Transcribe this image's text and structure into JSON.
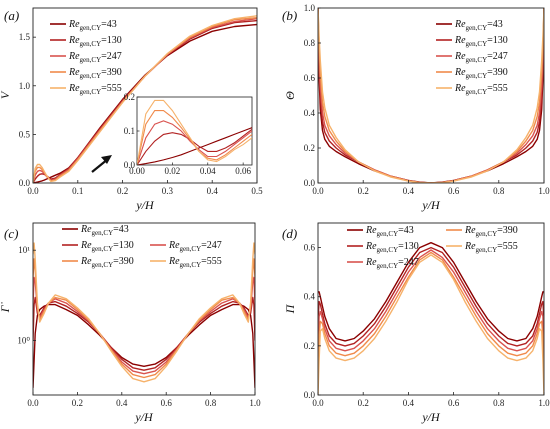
{
  "chart_data": [
    {
      "id": "a",
      "type": "line",
      "panel_label": "(a)",
      "xlabel": "y/H",
      "ylabel": "V",
      "xlim": [
        0,
        0.5
      ],
      "ylim": [
        0,
        1.8
      ],
      "xticks": [
        "0.0",
        "0.1",
        "0.2",
        "0.3",
        "0.4",
        "0.5"
      ],
      "yticks": [
        "0.0",
        "0.5",
        "1.0",
        "1.5"
      ],
      "xtick_values": [
        0,
        0.1,
        0.2,
        0.3,
        0.4,
        0.5
      ],
      "ytick_values": [
        0,
        0.5,
        1.0,
        1.5
      ],
      "legend_position": "top-left",
      "x": [
        0,
        0.005,
        0.01,
        0.015,
        0.02,
        0.025,
        0.03,
        0.04,
        0.05,
        0.06,
        0.08,
        0.1,
        0.15,
        0.2,
        0.25,
        0.3,
        0.35,
        0.4,
        0.45,
        0.5
      ],
      "series": [
        {
          "name": "43",
          "color": "#8b0000",
          "values": [
            0,
            0.004,
            0.009,
            0.015,
            0.022,
            0.03,
            0.04,
            0.06,
            0.08,
            0.1,
            0.155,
            0.26,
            0.57,
            0.86,
            1.11,
            1.31,
            1.46,
            1.56,
            1.61,
            1.63
          ]
        },
        {
          "name": "130",
          "color": "#b22222",
          "values": [
            0,
            0.04,
            0.07,
            0.09,
            0.095,
            0.09,
            0.075,
            0.04,
            0.05,
            0.085,
            0.15,
            0.26,
            0.56,
            0.85,
            1.1,
            1.32,
            1.48,
            1.59,
            1.65,
            1.67
          ]
        },
        {
          "name": "247",
          "color": "#d9534f",
          "values": [
            0,
            0.08,
            0.12,
            0.13,
            0.12,
            0.1,
            0.07,
            0.025,
            0.04,
            0.08,
            0.14,
            0.25,
            0.55,
            0.84,
            1.1,
            1.32,
            1.49,
            1.6,
            1.66,
            1.69
          ]
        },
        {
          "name": "390",
          "color": "#f08a4b",
          "values": [
            0,
            0.12,
            0.16,
            0.16,
            0.14,
            0.11,
            0.075,
            0.02,
            0.03,
            0.07,
            0.13,
            0.24,
            0.54,
            0.83,
            1.1,
            1.33,
            1.5,
            1.61,
            1.68,
            1.7
          ]
        },
        {
          "name": "555",
          "color": "#f6b26b",
          "values": [
            0,
            0.15,
            0.19,
            0.19,
            0.16,
            0.12,
            0.08,
            0.015,
            0.025,
            0.06,
            0.12,
            0.23,
            0.53,
            0.83,
            1.1,
            1.33,
            1.51,
            1.62,
            1.69,
            1.72
          ]
        }
      ],
      "inset": {
        "xlim": [
          0,
          0.065
        ],
        "ylim": [
          0,
          0.2
        ],
        "xticks": [
          "0.00",
          "0.02",
          "0.04",
          "0.06"
        ],
        "yticks": [
          "0.0",
          "0.1",
          "0.2"
        ],
        "xtick_values": [
          0,
          0.02,
          0.04,
          0.06
        ],
        "ytick_values": [
          0,
          0.1,
          0.2
        ],
        "x": [
          0,
          0.005,
          0.01,
          0.015,
          0.02,
          0.025,
          0.03,
          0.035,
          0.04,
          0.045,
          0.05,
          0.055,
          0.06,
          0.065
        ],
        "series": [
          {
            "name": "43",
            "values": [
              0,
              0.004,
              0.009,
              0.015,
              0.022,
              0.03,
              0.04,
              0.05,
              0.06,
              0.07,
              0.08,
              0.09,
              0.1,
              0.11
            ]
          },
          {
            "name": "130",
            "values": [
              0,
              0.04,
              0.07,
              0.09,
              0.095,
              0.09,
              0.075,
              0.055,
              0.04,
              0.04,
              0.05,
              0.065,
              0.085,
              0.105
            ]
          },
          {
            "name": "247",
            "values": [
              0,
              0.08,
              0.12,
              0.13,
              0.12,
              0.1,
              0.07,
              0.045,
              0.025,
              0.025,
              0.04,
              0.06,
              0.08,
              0.1
            ]
          },
          {
            "name": "390",
            "values": [
              0,
              0.12,
              0.16,
              0.16,
              0.14,
              0.11,
              0.075,
              0.04,
              0.02,
              0.015,
              0.03,
              0.05,
              0.07,
              0.09
            ]
          },
          {
            "name": "555",
            "values": [
              0,
              0.15,
              0.19,
              0.19,
              0.16,
              0.12,
              0.08,
              0.04,
              0.015,
              0.01,
              0.025,
              0.045,
              0.06,
              0.08
            ]
          }
        ]
      }
    },
    {
      "id": "b",
      "type": "line",
      "panel_label": "(b)",
      "xlabel": "y/H",
      "ylabel": "Θ",
      "xlim": [
        0,
        1
      ],
      "ylim": [
        0,
        1
      ],
      "xticks": [
        "0.0",
        "0.2",
        "0.4",
        "0.6",
        "0.8",
        "1.0"
      ],
      "yticks": [
        "0.0",
        "0.2",
        "0.4",
        "0.6",
        "0.8",
        "1.0"
      ],
      "xtick_values": [
        0,
        0.2,
        0.4,
        0.6,
        0.8,
        1.0
      ],
      "ytick_values": [
        0,
        0.2,
        0.4,
        0.6,
        0.8,
        1.0
      ],
      "legend_position": "top-right",
      "x": [
        0,
        0.005,
        0.01,
        0.02,
        0.03,
        0.05,
        0.08,
        0.12,
        0.18,
        0.25,
        0.32,
        0.4,
        0.45,
        0.5,
        0.55,
        0.6,
        0.68,
        0.75,
        0.82,
        0.88,
        0.92,
        0.95,
        0.97,
        0.98,
        0.99,
        0.995,
        1.0
      ],
      "series": [
        {
          "name": "43",
          "color": "#8b0000",
          "values": [
            1.0,
            0.6,
            0.42,
            0.3,
            0.25,
            0.21,
            0.18,
            0.15,
            0.11,
            0.07,
            0.04,
            0.015,
            0.005,
            0.0,
            0.005,
            0.015,
            0.04,
            0.07,
            0.11,
            0.15,
            0.18,
            0.21,
            0.25,
            0.3,
            0.42,
            0.6,
            1.0
          ]
        },
        {
          "name": "130",
          "color": "#b22222",
          "values": [
            1.0,
            0.66,
            0.48,
            0.35,
            0.29,
            0.24,
            0.2,
            0.16,
            0.12,
            0.075,
            0.04,
            0.014,
            0.004,
            0.0,
            0.004,
            0.014,
            0.04,
            0.075,
            0.12,
            0.16,
            0.2,
            0.24,
            0.29,
            0.35,
            0.48,
            0.66,
            1.0
          ]
        },
        {
          "name": "247",
          "color": "#d9534f",
          "values": [
            1.0,
            0.72,
            0.55,
            0.4,
            0.33,
            0.27,
            0.22,
            0.17,
            0.12,
            0.075,
            0.04,
            0.013,
            0.003,
            0.0,
            0.003,
            0.013,
            0.04,
            0.075,
            0.12,
            0.17,
            0.22,
            0.27,
            0.33,
            0.4,
            0.55,
            0.72,
            1.0
          ]
        },
        {
          "name": "390",
          "color": "#f08a4b",
          "values": [
            1.0,
            0.78,
            0.62,
            0.46,
            0.38,
            0.3,
            0.24,
            0.18,
            0.12,
            0.072,
            0.038,
            0.012,
            0.003,
            0.0,
            0.003,
            0.012,
            0.038,
            0.072,
            0.12,
            0.18,
            0.24,
            0.3,
            0.38,
            0.46,
            0.62,
            0.78,
            1.0
          ]
        },
        {
          "name": "555",
          "color": "#f6b26b",
          "values": [
            1.0,
            0.84,
            0.7,
            0.52,
            0.43,
            0.33,
            0.26,
            0.19,
            0.12,
            0.07,
            0.035,
            0.011,
            0.002,
            0.0,
            0.002,
            0.011,
            0.035,
            0.07,
            0.12,
            0.19,
            0.26,
            0.33,
            0.43,
            0.52,
            0.7,
            0.84,
            1.0
          ]
        }
      ]
    },
    {
      "id": "c",
      "type": "line",
      "panel_label": "(c)",
      "xlabel": "y/H",
      "ylabel": "Γ̇",
      "yscale": "log",
      "xlim": [
        0,
        1
      ],
      "ylim": [
        0.25,
        20
      ],
      "xticks": [
        "0.0",
        "0.2",
        "0.4",
        "0.6",
        "0.8",
        "1.0"
      ],
      "yticks": [
        "10⁰",
        "10¹"
      ],
      "xtick_values": [
        0,
        0.2,
        0.4,
        0.6,
        0.8,
        1.0
      ],
      "ytick_values": [
        1,
        10
      ],
      "legend_position": "top",
      "x": [
        0,
        0.005,
        0.01,
        0.02,
        0.03,
        0.05,
        0.07,
        0.1,
        0.15,
        0.2,
        0.25,
        0.3,
        0.35,
        0.4,
        0.45,
        0.5,
        0.55,
        0.6,
        0.65,
        0.7,
        0.75,
        0.8,
        0.85,
        0.9,
        0.93,
        0.95,
        0.97,
        0.98,
        0.99,
        0.995,
        1.0
      ],
      "series": [
        {
          "name": "43",
          "color": "#8b0000",
          "values": [
            0.3,
            0.6,
            1.2,
            1.9,
            2.2,
            2.4,
            2.5,
            2.5,
            2.2,
            1.9,
            1.5,
            1.15,
            0.85,
            0.65,
            0.55,
            0.52,
            0.55,
            0.65,
            0.85,
            1.15,
            1.5,
            1.9,
            2.2,
            2.5,
            2.5,
            2.4,
            2.2,
            1.9,
            1.2,
            0.6,
            0.3
          ]
        },
        {
          "name": "130",
          "color": "#b22222",
          "values": [
            1.0,
            2.5,
            3.0,
            2.0,
            1.9,
            2.3,
            2.6,
            2.7,
            2.4,
            2.0,
            1.6,
            1.2,
            0.85,
            0.62,
            0.5,
            0.47,
            0.5,
            0.62,
            0.85,
            1.2,
            1.6,
            2.0,
            2.4,
            2.7,
            2.6,
            2.3,
            1.9,
            2.0,
            3.0,
            2.5,
            1.0
          ]
        },
        {
          "name": "247",
          "color": "#d9534f",
          "values": [
            2.5,
            5.0,
            4.5,
            2.2,
            1.8,
            2.2,
            2.6,
            2.9,
            2.6,
            2.1,
            1.65,
            1.2,
            0.82,
            0.58,
            0.46,
            0.43,
            0.46,
            0.58,
            0.82,
            1.2,
            1.65,
            2.1,
            2.6,
            2.9,
            2.6,
            2.2,
            1.8,
            2.2,
            4.5,
            5.0,
            2.5
          ]
        },
        {
          "name": "390",
          "color": "#f08a4b",
          "values": [
            5.0,
            8.0,
            6.0,
            2.4,
            1.7,
            2.1,
            2.6,
            3.0,
            2.8,
            2.2,
            1.7,
            1.2,
            0.8,
            0.55,
            0.42,
            0.39,
            0.42,
            0.55,
            0.8,
            1.2,
            1.7,
            2.2,
            2.8,
            3.0,
            2.6,
            2.1,
            1.7,
            2.4,
            6.0,
            8.0,
            5.0
          ]
        },
        {
          "name": "555",
          "color": "#f6b26b",
          "values": [
            9.0,
            12.0,
            8.0,
            2.6,
            1.6,
            2.0,
            2.6,
            3.2,
            2.9,
            2.3,
            1.75,
            1.2,
            0.78,
            0.52,
            0.38,
            0.35,
            0.38,
            0.52,
            0.78,
            1.2,
            1.75,
            2.3,
            2.9,
            3.2,
            2.6,
            2.0,
            1.6,
            2.6,
            8.0,
            12.0,
            9.0
          ]
        }
      ]
    },
    {
      "id": "d",
      "type": "line",
      "panel_label": "(d)",
      "xlabel": "y/H",
      "ylabel": "Π",
      "xlim": [
        0,
        1
      ],
      "ylim": [
        0,
        0.7
      ],
      "xticks": [
        "0.0",
        "0.2",
        "0.4",
        "0.6",
        "0.8",
        "1.0"
      ],
      "yticks": [
        "0.0",
        "0.2",
        "0.4",
        "0.6"
      ],
      "xtick_values": [
        0,
        0.2,
        0.4,
        0.6,
        0.8,
        1.0
      ],
      "ytick_values": [
        0,
        0.2,
        0.4,
        0.6
      ],
      "legend_position": "top",
      "x": [
        0,
        0.005,
        0.01,
        0.02,
        0.03,
        0.05,
        0.08,
        0.12,
        0.16,
        0.2,
        0.25,
        0.3,
        0.35,
        0.4,
        0.45,
        0.5,
        0.55,
        0.6,
        0.65,
        0.7,
        0.75,
        0.8,
        0.84,
        0.88,
        0.92,
        0.95,
        0.97,
        0.98,
        0.99,
        0.995,
        1.0
      ],
      "series": [
        {
          "name": "43",
          "color": "#8b0000",
          "values": [
            0.42,
            0.42,
            0.4,
            0.36,
            0.32,
            0.27,
            0.23,
            0.22,
            0.23,
            0.26,
            0.31,
            0.38,
            0.46,
            0.54,
            0.6,
            0.62,
            0.6,
            0.54,
            0.46,
            0.38,
            0.31,
            0.26,
            0.23,
            0.22,
            0.23,
            0.27,
            0.32,
            0.36,
            0.4,
            0.42,
            0.42
          ]
        },
        {
          "name": "130",
          "color": "#b22222",
          "values": [
            0.3,
            0.38,
            0.37,
            0.33,
            0.29,
            0.24,
            0.21,
            0.2,
            0.21,
            0.24,
            0.29,
            0.36,
            0.44,
            0.52,
            0.58,
            0.6,
            0.58,
            0.52,
            0.44,
            0.36,
            0.29,
            0.24,
            0.21,
            0.2,
            0.21,
            0.24,
            0.29,
            0.33,
            0.37,
            0.38,
            0.3
          ]
        },
        {
          "name": "247",
          "color": "#d9534f",
          "values": [
            0.15,
            0.32,
            0.34,
            0.31,
            0.27,
            0.22,
            0.19,
            0.18,
            0.19,
            0.22,
            0.27,
            0.34,
            0.42,
            0.5,
            0.56,
            0.59,
            0.56,
            0.5,
            0.42,
            0.34,
            0.27,
            0.22,
            0.19,
            0.18,
            0.19,
            0.22,
            0.27,
            0.31,
            0.34,
            0.32,
            0.15
          ]
        },
        {
          "name": "390",
          "color": "#f08a4b",
          "values": [
            0.05,
            0.24,
            0.3,
            0.29,
            0.25,
            0.2,
            0.17,
            0.16,
            0.17,
            0.2,
            0.25,
            0.32,
            0.4,
            0.48,
            0.55,
            0.58,
            0.55,
            0.48,
            0.4,
            0.32,
            0.25,
            0.2,
            0.17,
            0.16,
            0.17,
            0.2,
            0.25,
            0.29,
            0.3,
            0.24,
            0.05
          ]
        },
        {
          "name": "555",
          "color": "#f6b26b",
          "values": [
            0.0,
            0.14,
            0.26,
            0.27,
            0.23,
            0.18,
            0.15,
            0.14,
            0.15,
            0.18,
            0.23,
            0.3,
            0.38,
            0.47,
            0.54,
            0.57,
            0.54,
            0.47,
            0.38,
            0.3,
            0.23,
            0.18,
            0.15,
            0.14,
            0.15,
            0.18,
            0.23,
            0.27,
            0.26,
            0.14,
            0.0
          ]
        }
      ]
    }
  ],
  "legend_prefix": "Re",
  "legend_subscript": "gen,CY",
  "legend_equals": "="
}
